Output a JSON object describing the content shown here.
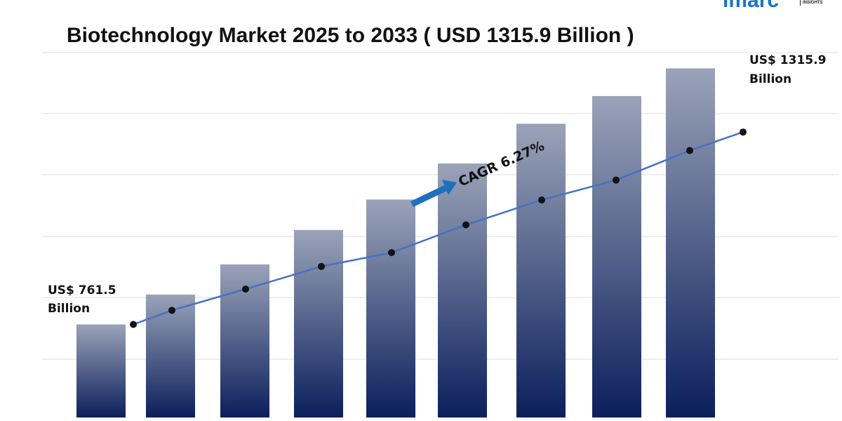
{
  "chart_data": {
    "type": "bar",
    "title": "Biotechnology Market 2025 to 2033 ( USD 1315.9 Billion )",
    "categories": [
      "",
      "",
      "",
      "",
      "",
      "",
      "",
      "",
      ""
    ],
    "values": [
      761.5,
      826.2,
      891.5,
      966.0,
      1032.0,
      1110.0,
      1196.0,
      1256.0,
      1315.9
    ],
    "line_values": [
      761.5,
      792.0,
      838.0,
      887.0,
      917.0,
      977.0,
      1031.0,
      1074.0,
      1138.0,
      1178.0
    ],
    "ylim": [
      560,
      1350
    ],
    "grid": true,
    "series_color": "#0b1f5c",
    "line_color": "#4472c4",
    "arrow_color": "#1f6fbf",
    "annotations": {
      "start_value": "US$ 761.5",
      "start_unit": "Billion",
      "end_value": "US$ 1315.9",
      "end_unit": "Billion",
      "cagr": "CAGR 6.27%"
    }
  },
  "logo": {
    "text": "imarc",
    "sub": "INSIGHTS"
  }
}
